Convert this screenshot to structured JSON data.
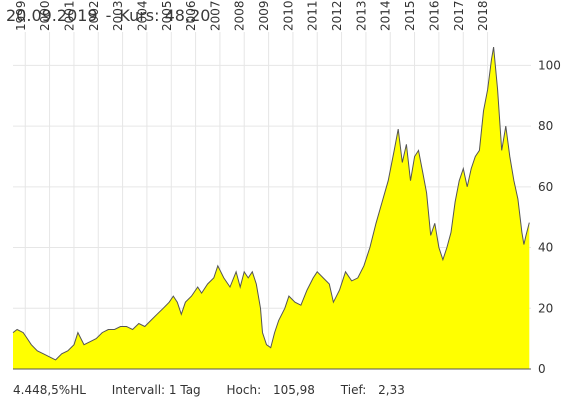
{
  "header": {
    "date": "20.09.2019",
    "separator": "-",
    "price_label": "Kurs: 48,20"
  },
  "footer": {
    "hl": "4.448,5%HL",
    "interval": "Intervall: 1 Tag",
    "high_label": "Hoch:",
    "high_value": "105,98",
    "low_label": "Tief:",
    "low_value": "2,33"
  },
  "chart_data": {
    "type": "area",
    "x_type": "date",
    "xlim": [
      "1998-07-01",
      "2019-10-15"
    ],
    "ylim": [
      0,
      110
    ],
    "y_ticks": [
      0,
      20,
      40,
      60,
      80,
      100
    ],
    "x_tick_labels": [
      "1999",
      "2000",
      "2001",
      "2002",
      "2003",
      "2004",
      "2005",
      "2006",
      "2007",
      "2008",
      "2009",
      "2010",
      "2011",
      "2012",
      "2013",
      "2014",
      "2015",
      "2016",
      "2017",
      "2018"
    ],
    "grid": true,
    "fill_color": "#ffff00",
    "line_color": "#555555",
    "grid_color": "#e6e6e6",
    "points": [
      [
        "1998-07-01",
        12
      ],
      [
        "1998-09-01",
        13
      ],
      [
        "1998-12-01",
        12
      ],
      [
        "1999-02-01",
        10
      ],
      [
        "1999-04-01",
        8
      ],
      [
        "1999-07-01",
        6
      ],
      [
        "1999-10-01",
        5
      ],
      [
        "2000-01-01",
        4
      ],
      [
        "2000-04-01",
        3
      ],
      [
        "2000-07-01",
        5
      ],
      [
        "2000-10-01",
        6
      ],
      [
        "2001-01-01",
        8
      ],
      [
        "2001-03-01",
        12
      ],
      [
        "2001-06-01",
        8
      ],
      [
        "2001-09-01",
        9
      ],
      [
        "2001-12-01",
        10
      ],
      [
        "2002-03-01",
        12
      ],
      [
        "2002-06-01",
        13
      ],
      [
        "2002-09-01",
        13
      ],
      [
        "2002-12-01",
        14
      ],
      [
        "2003-03-01",
        14
      ],
      [
        "2003-06-01",
        13
      ],
      [
        "2003-09-01",
        15
      ],
      [
        "2003-12-01",
        14
      ],
      [
        "2004-03-01",
        16
      ],
      [
        "2004-06-01",
        18
      ],
      [
        "2004-09-01",
        20
      ],
      [
        "2004-12-01",
        22
      ],
      [
        "2005-02-01",
        24
      ],
      [
        "2005-04-01",
        22
      ],
      [
        "2005-06-01",
        18
      ],
      [
        "2005-08-01",
        22
      ],
      [
        "2005-11-01",
        24
      ],
      [
        "2006-02-01",
        27
      ],
      [
        "2006-04-01",
        25
      ],
      [
        "2006-07-01",
        28
      ],
      [
        "2006-10-01",
        30
      ],
      [
        "2006-12-01",
        34
      ],
      [
        "2007-03-01",
        30
      ],
      [
        "2007-06-01",
        27
      ],
      [
        "2007-09-01",
        32
      ],
      [
        "2007-11-01",
        27
      ],
      [
        "2008-01-01",
        32
      ],
      [
        "2008-03-01",
        30
      ],
      [
        "2008-05-01",
        32
      ],
      [
        "2008-07-01",
        28
      ],
      [
        "2008-09-01",
        20
      ],
      [
        "2008-10-01",
        12
      ],
      [
        "2008-12-01",
        8
      ],
      [
        "2009-02-01",
        7
      ],
      [
        "2009-04-01",
        12
      ],
      [
        "2009-06-01",
        16
      ],
      [
        "2009-09-01",
        20
      ],
      [
        "2009-11-01",
        24
      ],
      [
        "2010-02-01",
        22
      ],
      [
        "2010-05-01",
        21
      ],
      [
        "2010-08-01",
        26
      ],
      [
        "2010-11-01",
        30
      ],
      [
        "2011-01-01",
        32
      ],
      [
        "2011-04-01",
        30
      ],
      [
        "2011-07-01",
        28
      ],
      [
        "2011-09-01",
        22
      ],
      [
        "2011-12-01",
        26
      ],
      [
        "2012-03-01",
        32
      ],
      [
        "2012-06-01",
        29
      ],
      [
        "2012-09-01",
        30
      ],
      [
        "2012-12-01",
        34
      ],
      [
        "2013-03-01",
        40
      ],
      [
        "2013-06-01",
        48
      ],
      [
        "2013-09-01",
        55
      ],
      [
        "2013-12-01",
        62
      ],
      [
        "2014-03-01",
        72
      ],
      [
        "2014-05-01",
        79
      ],
      [
        "2014-07-01",
        68
      ],
      [
        "2014-09-01",
        74
      ],
      [
        "2014-11-01",
        62
      ],
      [
        "2015-01-01",
        70
      ],
      [
        "2015-03-01",
        72
      ],
      [
        "2015-05-01",
        65
      ],
      [
        "2015-07-01",
        58
      ],
      [
        "2015-09-01",
        44
      ],
      [
        "2015-11-01",
        48
      ],
      [
        "2016-01-01",
        40
      ],
      [
        "2016-03-01",
        36
      ],
      [
        "2016-05-01",
        40
      ],
      [
        "2016-07-01",
        45
      ],
      [
        "2016-09-01",
        55
      ],
      [
        "2016-11-01",
        62
      ],
      [
        "2017-01-01",
        66
      ],
      [
        "2017-03-01",
        60
      ],
      [
        "2017-05-01",
        66
      ],
      [
        "2017-07-01",
        70
      ],
      [
        "2017-09-01",
        72
      ],
      [
        "2017-11-01",
        85
      ],
      [
        "2018-01-01",
        92
      ],
      [
        "2018-03-01",
        102
      ],
      [
        "2018-04-01",
        106
      ],
      [
        "2018-06-01",
        92
      ],
      [
        "2018-08-01",
        72
      ],
      [
        "2018-10-01",
        80
      ],
      [
        "2018-12-01",
        70
      ],
      [
        "2019-02-01",
        62
      ],
      [
        "2019-04-01",
        56
      ],
      [
        "2019-06-01",
        45
      ],
      [
        "2019-07-01",
        41
      ],
      [
        "2019-08-01",
        44
      ],
      [
        "2019-09-20",
        48.2
      ]
    ]
  }
}
